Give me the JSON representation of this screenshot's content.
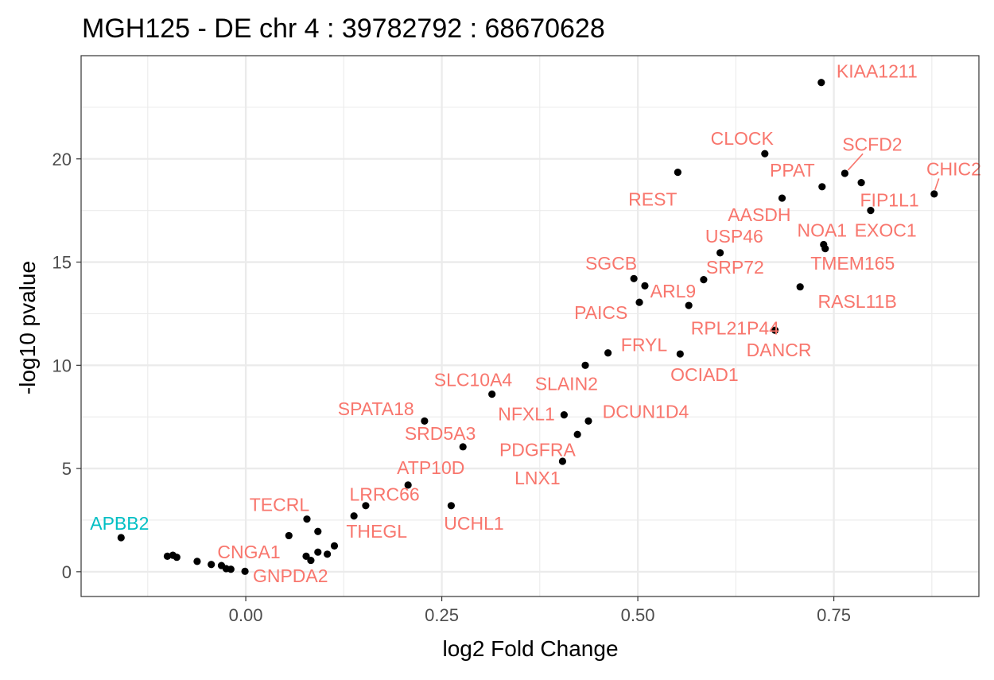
{
  "chart_data": {
    "type": "scatter",
    "title": "MGH125 - DE chr 4 : 39782792 : 68670628",
    "xlabel": "log2 Fold Change",
    "ylabel": "-log10 pvalue",
    "xlim": [
      -0.21,
      0.935
    ],
    "ylim": [
      -1.2,
      25.0
    ],
    "xticks": [
      0.0,
      0.25,
      0.5,
      0.75
    ],
    "xtick_labels": [
      "0.00",
      "0.25",
      "0.50",
      "0.75"
    ],
    "yticks": [
      0,
      5,
      10,
      15,
      20
    ],
    "ytick_labels": [
      "0",
      "5",
      "10",
      "15",
      "20"
    ],
    "grid": true,
    "colors": {
      "up": "#f8766d",
      "down": "#00bfc4",
      "point": "#000000"
    },
    "points": [
      {
        "x": 0.734,
        "y": 23.7
      },
      {
        "x": 0.662,
        "y": 20.25
      },
      {
        "x": 0.551,
        "y": 19.35
      },
      {
        "x": 0.764,
        "y": 19.3
      },
      {
        "x": 0.785,
        "y": 18.85
      },
      {
        "x": 0.735,
        "y": 18.65
      },
      {
        "x": 0.878,
        "y": 18.3
      },
      {
        "x": 0.684,
        "y": 18.1
      },
      {
        "x": 0.797,
        "y": 17.5
      },
      {
        "x": 0.737,
        "y": 15.85
      },
      {
        "x": 0.739,
        "y": 15.65
      },
      {
        "x": 0.605,
        "y": 15.45
      },
      {
        "x": 0.495,
        "y": 14.2
      },
      {
        "x": 0.584,
        "y": 14.15
      },
      {
        "x": 0.509,
        "y": 13.85
      },
      {
        "x": 0.707,
        "y": 13.8
      },
      {
        "x": 0.502,
        "y": 13.05
      },
      {
        "x": 0.565,
        "y": 12.9
      },
      {
        "x": 0.675,
        "y": 11.7
      },
      {
        "x": 0.462,
        "y": 10.6
      },
      {
        "x": 0.554,
        "y": 10.55
      },
      {
        "x": 0.433,
        "y": 10.0
      },
      {
        "x": 0.314,
        "y": 8.6
      },
      {
        "x": 0.406,
        "y": 7.6
      },
      {
        "x": 0.228,
        "y": 7.3
      },
      {
        "x": 0.437,
        "y": 7.3
      },
      {
        "x": 0.423,
        "y": 6.65
      },
      {
        "x": 0.277,
        "y": 6.05
      },
      {
        "x": 0.404,
        "y": 5.35
      },
      {
        "x": 0.207,
        "y": 4.2
      },
      {
        "x": 0.262,
        "y": 3.2
      },
      {
        "x": 0.153,
        "y": 3.2
      },
      {
        "x": 0.138,
        "y": 2.7
      },
      {
        "x": 0.078,
        "y": 2.55
      },
      {
        "x": -0.159,
        "y": 1.65
      },
      {
        "x": 0.092,
        "y": 1.95
      },
      {
        "x": 0.055,
        "y": 1.75
      },
      {
        "x": 0.113,
        "y": 1.25
      },
      {
        "x": 0.092,
        "y": 0.95
      },
      {
        "x": 0.104,
        "y": 0.85
      },
      {
        "x": 0.077,
        "y": 0.75
      },
      {
        "x": 0.083,
        "y": 0.55
      },
      {
        "x": -0.1,
        "y": 0.75
      },
      {
        "x": -0.093,
        "y": 0.8
      },
      {
        "x": -0.088,
        "y": 0.7
      },
      {
        "x": -0.062,
        "y": 0.5
      },
      {
        "x": -0.044,
        "y": 0.35
      },
      {
        "x": -0.031,
        "y": 0.3
      },
      {
        "x": -0.025,
        "y": 0.15
      },
      {
        "x": -0.019,
        "y": 0.12
      },
      {
        "x": -0.001,
        "y": 0.02
      }
    ],
    "labels": [
      {
        "text": "KIAA1211",
        "x": 0.805,
        "y": 24.25,
        "color": "up"
      },
      {
        "text": "CLOCK",
        "x": 0.633,
        "y": 21.0,
        "color": "up"
      },
      {
        "text": "SCFD2",
        "x": 0.799,
        "y": 20.7,
        "color": "up",
        "seg": [
          0.768,
          19.45,
          0.787,
          20.25
        ]
      },
      {
        "text": "CHIC2",
        "x": 0.903,
        "y": 19.5,
        "color": "up",
        "seg": [
          0.879,
          18.5,
          0.884,
          19.05
        ]
      },
      {
        "text": "PPAT",
        "x": 0.697,
        "y": 19.45,
        "color": "up"
      },
      {
        "text": "REST",
        "x": 0.519,
        "y": 18.05,
        "color": "up"
      },
      {
        "text": "FIP1L1",
        "x": 0.821,
        "y": 18.0,
        "color": "up"
      },
      {
        "text": "AASDH",
        "x": 0.655,
        "y": 17.3,
        "color": "up"
      },
      {
        "text": "EXOC1",
        "x": 0.816,
        "y": 16.55,
        "color": "up"
      },
      {
        "text": "NOA1",
        "x": 0.735,
        "y": 16.55,
        "color": "up"
      },
      {
        "text": "USP46",
        "x": 0.623,
        "y": 16.25,
        "color": "up"
      },
      {
        "text": "SGCB",
        "x": 0.466,
        "y": 14.95,
        "color": "up"
      },
      {
        "text": "TMEM165",
        "x": 0.774,
        "y": 14.95,
        "color": "up"
      },
      {
        "text": "SRP72",
        "x": 0.624,
        "y": 14.75,
        "color": "up"
      },
      {
        "text": "ARL9",
        "x": 0.545,
        "y": 13.6,
        "color": "up"
      },
      {
        "text": "RASL11B",
        "x": 0.78,
        "y": 13.1,
        "color": "up"
      },
      {
        "text": "PAICS",
        "x": 0.453,
        "y": 12.55,
        "color": "up"
      },
      {
        "text": "RPL21P44",
        "x": 0.624,
        "y": 11.8,
        "color": "up"
      },
      {
        "text": "FRYL",
        "x": 0.508,
        "y": 11.0,
        "color": "up"
      },
      {
        "text": "DANCR",
        "x": 0.68,
        "y": 10.75,
        "color": "up"
      },
      {
        "text": "OCIAD1",
        "x": 0.585,
        "y": 9.55,
        "color": "up"
      },
      {
        "text": "SLC10A4",
        "x": 0.29,
        "y": 9.3,
        "color": "up"
      },
      {
        "text": "SLAIN2",
        "x": 0.409,
        "y": 9.1,
        "color": "up"
      },
      {
        "text": "DCUN1D4",
        "x": 0.51,
        "y": 7.75,
        "color": "up"
      },
      {
        "text": "SPATA18",
        "x": 0.166,
        "y": 7.9,
        "color": "up"
      },
      {
        "text": "NFXL1",
        "x": 0.358,
        "y": 7.65,
        "color": "up"
      },
      {
        "text": "SRD5A3",
        "x": 0.248,
        "y": 6.7,
        "color": "up"
      },
      {
        "text": "PDGFRA",
        "x": 0.372,
        "y": 5.9,
        "color": "up"
      },
      {
        "text": "ATP10D",
        "x": 0.236,
        "y": 5.05,
        "color": "up"
      },
      {
        "text": "LNX1",
        "x": 0.372,
        "y": 4.55,
        "color": "up"
      },
      {
        "text": "LRRC66",
        "x": 0.177,
        "y": 3.75,
        "color": "up"
      },
      {
        "text": "TECRL",
        "x": 0.043,
        "y": 3.25,
        "color": "up"
      },
      {
        "text": "UCHL1",
        "x": 0.291,
        "y": 2.35,
        "color": "up"
      },
      {
        "text": "APBB2",
        "x": -0.161,
        "y": 2.35,
        "color": "down"
      },
      {
        "text": "THEGL",
        "x": 0.167,
        "y": 1.95,
        "color": "up"
      },
      {
        "text": "CNGA1",
        "x": 0.004,
        "y": 0.95,
        "color": "up"
      },
      {
        "text": "GNPDA2",
        "x": 0.057,
        "y": -0.2,
        "color": "up"
      }
    ]
  }
}
